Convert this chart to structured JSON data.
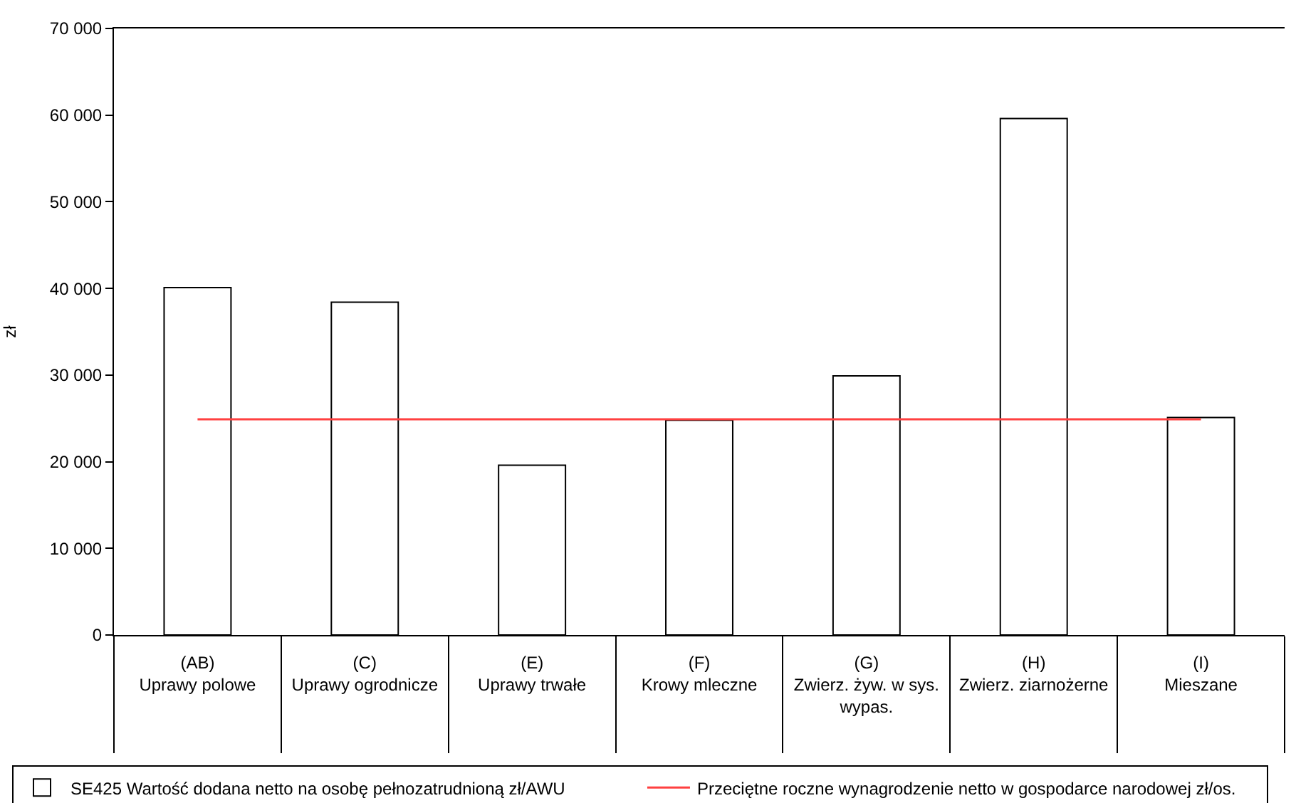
{
  "chart_data": {
    "type": "bar",
    "ylabel": "zł",
    "categories": [
      "(AB)\nUprawy polowe",
      "(C)\nUprawy ogrodnicze",
      "(E)\nUprawy trwałe",
      "(F)\nKrowy mleczne",
      "(G)\nZwierz. żyw. w sys.\nwypas.",
      "(H)\nZwierz. ziarnożerne",
      "(I)\nMieszane"
    ],
    "series": [
      {
        "name": "SE425 Wartość dodana netto na osobę pełnozatrudnioną zł/AWU",
        "color": "#ffffff",
        "values": [
          40100,
          38400,
          19600,
          24800,
          29900,
          59600,
          25100
        ]
      },
      {
        "name": "Przeciętne roczne wynagrodzenie netto w gospodarce narodowej zł/os.",
        "type": "line",
        "color": "#ff4040",
        "marker": "none",
        "line_style": "solid",
        "values": [
          24900,
          24900,
          24900,
          24900,
          24900,
          24900,
          24900
        ]
      }
    ],
    "ylim": [
      0,
      70000
    ],
    "yticks": [
      0,
      {
        "value": 10000,
        "label": "10 000"
      },
      {
        "value": 20000,
        "label": "20 000"
      },
      {
        "value": 30000,
        "label": "30 000"
      },
      {
        "value": 40000,
        "label": "40 000"
      },
      {
        "value": 50000,
        "label": "50 000"
      },
      {
        "value": 60000,
        "label": "60 000"
      },
      {
        "value": 70000,
        "label": "70 000"
      }
    ],
    "grid": false,
    "legend": "bottom"
  }
}
